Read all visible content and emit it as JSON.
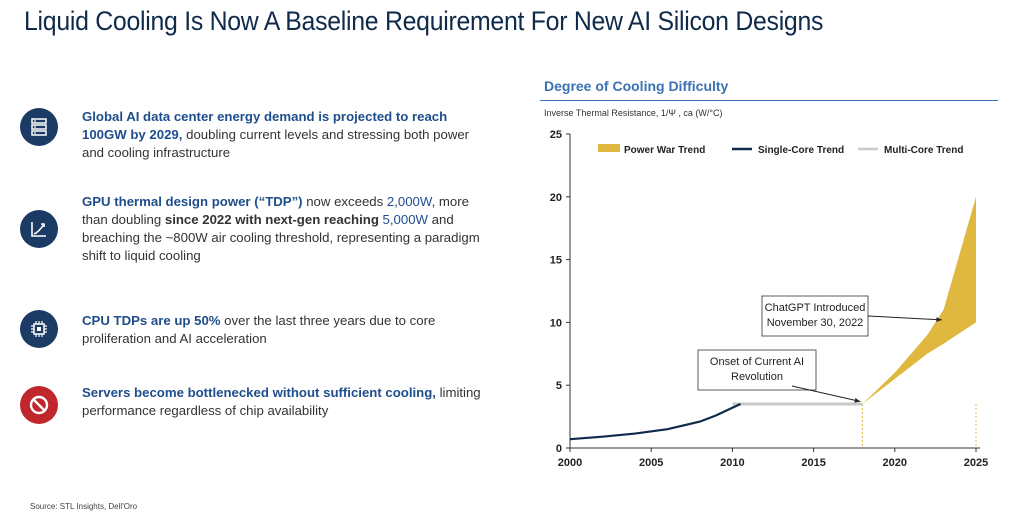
{
  "title": "Liquid Cooling Is Now A Baseline Requirement For New AI Silicon Designs",
  "bullets": [
    {
      "icon": "server-rack-icon",
      "lead": "Global AI data center energy demand is projected to reach 100GW by 2029,",
      "rest": "doubling current levels and stressing both power and cooling infrastructure"
    },
    {
      "icon": "trend-up-chart-icon",
      "lead": "GPU thermal design power (“TDP”)",
      "mid1": " now exceeds ",
      "v1": "2,000W",
      "mid2": ", more than doubling ",
      "b1": "since 2022 with next-gen reaching ",
      "v2": "5,000W",
      "rest": " and breaching the ~800W air cooling threshold, representing a paradigm shift to liquid cooling"
    },
    {
      "icon": "cpu-chip-icon",
      "lead": "CPU TDPs are up 50%",
      "rest": " over the last three years due to core proliferation and AI acceleration"
    },
    {
      "icon": "prohibited-icon",
      "lead": "Servers become bottlenecked without sufficient cooling,",
      "rest": " limiting performance regardless of chip availability"
    }
  ],
  "source": "Source: STL Insights, Dell'Oro",
  "chart_data": {
    "type": "line",
    "title": "Degree of Cooling Difficulty",
    "ylabel": "Inverse Thermal Resistance, 1/Ψ , ca (W/°C)",
    "xlim": [
      2000,
      2025
    ],
    "ylim": [
      0,
      25
    ],
    "xticks": [
      "2000",
      "2005",
      "2010",
      "2015",
      "2020",
      "2025"
    ],
    "yticks": [
      "0",
      "5",
      "10",
      "15",
      "20",
      "25"
    ],
    "legend": [
      "Power War Trend",
      "Single-Core Trend",
      "Multi-Core Trend"
    ],
    "legend_position": "top",
    "series": [
      {
        "name": "Single-Core Trend",
        "color": "#0f2a4a",
        "points": [
          [
            2000,
            0.7
          ],
          [
            2002,
            0.9
          ],
          [
            2004,
            1.15
          ],
          [
            2006,
            1.5
          ],
          [
            2008,
            2.1
          ],
          [
            2009,
            2.6
          ],
          [
            2010,
            3.2
          ],
          [
            2010.5,
            3.5
          ]
        ]
      },
      {
        "name": "Multi-Core Trend",
        "color": "#c8c8c8",
        "points": [
          [
            2010,
            3.5
          ],
          [
            2018,
            3.5
          ]
        ]
      },
      {
        "name": "Power War Trend",
        "color": "#e0b840",
        "upper": [
          [
            2018,
            3.5
          ],
          [
            2020,
            6
          ],
          [
            2022,
            9
          ],
          [
            2023,
            11
          ],
          [
            2025,
            20
          ]
        ],
        "lower": [
          [
            2018,
            3.5
          ],
          [
            2020,
            5.5
          ],
          [
            2022,
            7.5
          ],
          [
            2023,
            8.3
          ],
          [
            2025,
            10
          ]
        ]
      }
    ],
    "annotations": [
      {
        "label": "ChatGPT Introduced",
        "label2": "November 30, 2022",
        "x": 2022.9,
        "y": 10.2
      },
      {
        "label": "Onset of Current AI",
        "label2": "Revolution",
        "x": 2018,
        "y": 4.5
      }
    ]
  }
}
